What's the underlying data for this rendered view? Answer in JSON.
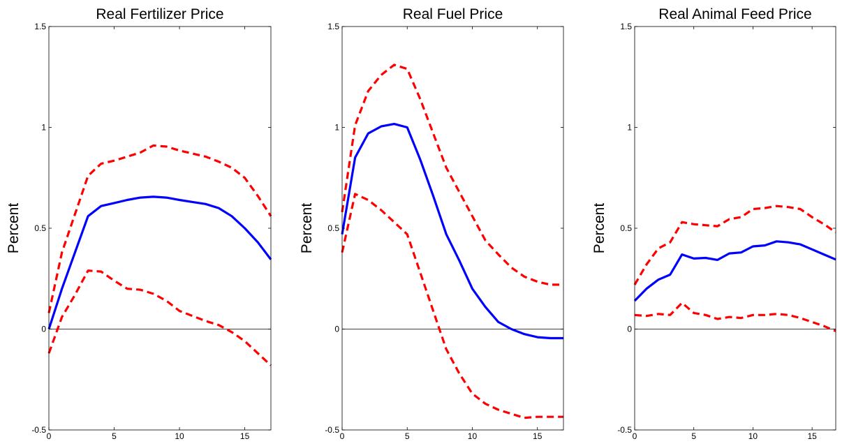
{
  "colors": {
    "irf": "#0000ff",
    "band": "#ff0000",
    "axis": "#000000"
  },
  "chart_data": [
    {
      "type": "line",
      "title": "Real Fertilizer Price",
      "xlabel": "",
      "ylabel": "Percent",
      "xlim": [
        0,
        17
      ],
      "ylim": [
        -0.5,
        1.5
      ],
      "xticks": [
        0,
        5,
        10,
        15
      ],
      "yticks": [
        -0.5,
        0,
        0.5,
        1,
        1.5
      ],
      "ytick_labels": [
        "-0.5",
        "0",
        "0.5",
        "1",
        "1.5"
      ],
      "x": [
        0,
        1,
        2,
        3,
        4,
        5,
        6,
        7,
        8,
        9,
        10,
        11,
        12,
        13,
        14,
        15,
        16,
        17
      ],
      "series": [
        {
          "role": "irf",
          "values": [
            0.0,
            0.2,
            0.38,
            0.56,
            0.61,
            0.625,
            0.64,
            0.652,
            0.656,
            0.652,
            0.64,
            0.63,
            0.62,
            0.6,
            0.56,
            0.5,
            0.43,
            0.345
          ]
        },
        {
          "role": "upper",
          "values": [
            0.08,
            0.38,
            0.57,
            0.76,
            0.82,
            0.835,
            0.855,
            0.875,
            0.91,
            0.905,
            0.885,
            0.87,
            0.855,
            0.83,
            0.8,
            0.75,
            0.66,
            0.56
          ]
        },
        {
          "role": "lower",
          "values": [
            -0.12,
            0.06,
            0.17,
            0.29,
            0.285,
            0.24,
            0.2,
            0.195,
            0.175,
            0.14,
            0.09,
            0.065,
            0.04,
            0.02,
            -0.015,
            -0.06,
            -0.12,
            -0.18
          ]
        }
      ]
    },
    {
      "type": "line",
      "title": "Real Fuel Price",
      "xlabel": "",
      "ylabel": "Percent",
      "xlim": [
        0,
        17
      ],
      "ylim": [
        -0.5,
        1.5
      ],
      "xticks": [
        0,
        5,
        10,
        15
      ],
      "yticks": [
        -0.5,
        0,
        0.5,
        1,
        1.5
      ],
      "ytick_labels": [
        "-0.5",
        "0",
        "0.5",
        "1",
        "1.5"
      ],
      "x": [
        0,
        1,
        2,
        3,
        4,
        5,
        6,
        7,
        8,
        9,
        10,
        11,
        12,
        13,
        14,
        15,
        16,
        17
      ],
      "series": [
        {
          "role": "irf",
          "values": [
            0.47,
            0.85,
            0.97,
            1.005,
            1.017,
            1.0,
            0.84,
            0.66,
            0.47,
            0.34,
            0.2,
            0.11,
            0.035,
            0.0,
            -0.025,
            -0.04,
            -0.045,
            -0.045
          ]
        },
        {
          "role": "upper",
          "values": [
            0.58,
            1.01,
            1.18,
            1.26,
            1.31,
            1.29,
            1.14,
            0.97,
            0.8,
            0.68,
            0.56,
            0.44,
            0.37,
            0.305,
            0.26,
            0.235,
            0.22,
            0.22
          ]
        },
        {
          "role": "lower",
          "values": [
            0.38,
            0.67,
            0.64,
            0.59,
            0.53,
            0.47,
            0.28,
            0.09,
            -0.1,
            -0.22,
            -0.32,
            -0.37,
            -0.4,
            -0.42,
            -0.44,
            -0.435,
            -0.435,
            -0.435
          ]
        }
      ]
    },
    {
      "type": "line",
      "title": "Real Animal Feed Price",
      "xlabel": "",
      "ylabel": "Percent",
      "xlim": [
        0,
        17
      ],
      "ylim": [
        -0.5,
        1.5
      ],
      "xticks": [
        0,
        5,
        10,
        15
      ],
      "yticks": [
        -0.5,
        0,
        0.5,
        1,
        1.5
      ],
      "ytick_labels": [
        "-0.5",
        "0",
        "0.5",
        "1",
        "1.5"
      ],
      "x": [
        0,
        1,
        2,
        3,
        4,
        5,
        6,
        7,
        8,
        9,
        10,
        11,
        12,
        13,
        14,
        15,
        16,
        17
      ],
      "series": [
        {
          "role": "irf",
          "values": [
            0.14,
            0.2,
            0.245,
            0.27,
            0.37,
            0.35,
            0.353,
            0.343,
            0.375,
            0.38,
            0.41,
            0.415,
            0.435,
            0.43,
            0.42,
            0.395,
            0.37,
            0.345
          ]
        },
        {
          "role": "upper",
          "values": [
            0.22,
            0.32,
            0.4,
            0.43,
            0.53,
            0.52,
            0.515,
            0.51,
            0.545,
            0.555,
            0.595,
            0.6,
            0.61,
            0.605,
            0.595,
            0.555,
            0.52,
            0.48
          ]
        },
        {
          "role": "lower",
          "values": [
            0.07,
            0.065,
            0.075,
            0.07,
            0.13,
            0.08,
            0.07,
            0.05,
            0.06,
            0.055,
            0.07,
            0.07,
            0.075,
            0.07,
            0.055,
            0.035,
            0.015,
            -0.01
          ]
        }
      ]
    }
  ]
}
